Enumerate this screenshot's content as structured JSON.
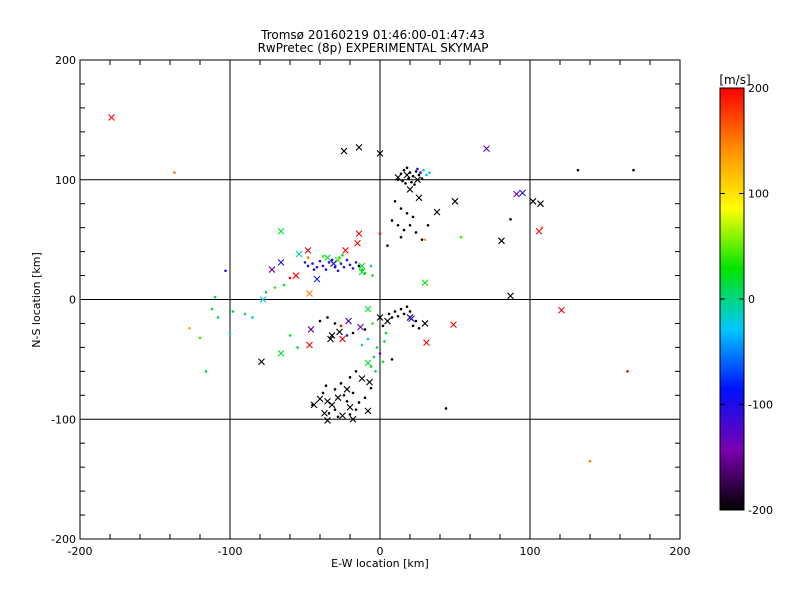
{
  "chart_data": {
    "type": "scatter",
    "title": "Tromsø 20160219 01:46:00-01:47:43",
    "subtitle": "RwPretec (8p) EXPERIMENTAL SKYMAP",
    "xlabel": "E-W location [km]",
    "ylabel": "N-S location [km]",
    "xlim": [
      -200,
      200
    ],
    "ylim": [
      -200,
      200
    ],
    "xticks": [
      "-200",
      "-100",
      "0",
      "100",
      "200"
    ],
    "yticks": [
      "-200",
      "-100",
      "0",
      "100",
      "200"
    ],
    "grid": true,
    "colorbar": {
      "label": "[m/s]",
      "range": [
        -200,
        200
      ],
      "ticks": [
        "-200",
        "-100",
        "0",
        "100",
        "200"
      ],
      "colormap": [
        "#000000",
        "#7a00b0",
        "#0010ff",
        "#00c8ff",
        "#00e400",
        "#ffff00",
        "#ff8c00",
        "#ff0000"
      ]
    },
    "cross_points": [
      {
        "x": -179,
        "y": 152,
        "v": 200
      },
      {
        "x": -24,
        "y": 124,
        "v": -200
      },
      {
        "x": -14,
        "y": 127,
        "v": -200
      },
      {
        "x": 0,
        "y": 122,
        "v": -200
      },
      {
        "x": 71,
        "y": 126,
        "v": -130
      },
      {
        "x": 18,
        "y": 104,
        "v": -200
      },
      {
        "x": 25,
        "y": 100,
        "v": -200
      },
      {
        "x": 12,
        "y": 102,
        "v": -200
      },
      {
        "x": 20,
        "y": 92,
        "v": -200
      },
      {
        "x": 26,
        "y": 85,
        "v": -200
      },
      {
        "x": 50,
        "y": 82,
        "v": -200
      },
      {
        "x": 38,
        "y": 73,
        "v": -200
      },
      {
        "x": 91,
        "y": 88,
        "v": -130
      },
      {
        "x": 95,
        "y": 89,
        "v": -100
      },
      {
        "x": 102,
        "y": 82,
        "v": -200
      },
      {
        "x": 107,
        "y": 80,
        "v": -200
      },
      {
        "x": 81,
        "y": 49,
        "v": -200
      },
      {
        "x": 106,
        "y": 57,
        "v": 200
      },
      {
        "x": 87,
        "y": 3,
        "v": -200
      },
      {
        "x": 121,
        "y": -9,
        "v": 200
      },
      {
        "x": -66,
        "y": 57,
        "v": 20
      },
      {
        "x": -14,
        "y": 55,
        "v": 200
      },
      {
        "x": -15,
        "y": 47,
        "v": 200
      },
      {
        "x": -23,
        "y": 41,
        "v": 200
      },
      {
        "x": -48,
        "y": 41,
        "v": 200
      },
      {
        "x": -54,
        "y": 38,
        "v": -10
      },
      {
        "x": -56,
        "y": 20,
        "v": 200
      },
      {
        "x": -35,
        "y": 35,
        "v": 20
      },
      {
        "x": -28,
        "y": 33,
        "v": 40
      },
      {
        "x": -31,
        "y": 30,
        "v": -100
      },
      {
        "x": -12,
        "y": 23,
        "v": 20
      },
      {
        "x": -12,
        "y": 28,
        "v": 20
      },
      {
        "x": -72,
        "y": 25,
        "v": -150
      },
      {
        "x": -66,
        "y": 31,
        "v": -100
      },
      {
        "x": -42,
        "y": 17,
        "v": -80
      },
      {
        "x": -47,
        "y": 5,
        "v": 150
      },
      {
        "x": -78,
        "y": 0,
        "v": -20
      },
      {
        "x": 30,
        "y": 14,
        "v": 30
      },
      {
        "x": -8,
        "y": -8,
        "v": 20
      },
      {
        "x": 0,
        "y": -15,
        "v": -200
      },
      {
        "x": 5,
        "y": -18,
        "v": -200
      },
      {
        "x": 20,
        "y": -15,
        "v": -200
      },
      {
        "x": 21,
        "y": -16,
        "v": -100
      },
      {
        "x": 30,
        "y": -20,
        "v": -200
      },
      {
        "x": 49,
        "y": -21,
        "v": 200
      },
      {
        "x": 31,
        "y": -36,
        "v": 200
      },
      {
        "x": -21,
        "y": -18,
        "v": -120
      },
      {
        "x": -13,
        "y": -23,
        "v": -130
      },
      {
        "x": -46,
        "y": -25,
        "v": -150
      },
      {
        "x": -27,
        "y": -27,
        "v": -200
      },
      {
        "x": -32,
        "y": -30,
        "v": -200
      },
      {
        "x": -25,
        "y": -33,
        "v": 200
      },
      {
        "x": -33,
        "y": -33,
        "v": -200
      },
      {
        "x": -47,
        "y": -38,
        "v": 200
      },
      {
        "x": -66,
        "y": -45,
        "v": 20
      },
      {
        "x": -79,
        "y": -52,
        "v": -200
      },
      {
        "x": -8,
        "y": -53,
        "v": 20
      },
      {
        "x": -12,
        "y": -66,
        "v": -200
      },
      {
        "x": -7,
        "y": -69,
        "v": -200
      },
      {
        "x": -22,
        "y": -75,
        "v": -200
      },
      {
        "x": -28,
        "y": -82,
        "v": -200
      },
      {
        "x": -32,
        "y": -88,
        "v": -200
      },
      {
        "x": -35,
        "y": -85,
        "v": -200
      },
      {
        "x": -37,
        "y": -95,
        "v": -200
      },
      {
        "x": -44,
        "y": -88,
        "v": -200
      },
      {
        "x": -20,
        "y": -90,
        "v": -200
      },
      {
        "x": -8,
        "y": -93,
        "v": -200
      },
      {
        "x": -35,
        "y": -101,
        "v": -200
      },
      {
        "x": -18,
        "y": -100,
        "v": -200
      },
      {
        "x": -25,
        "y": -97,
        "v": -200
      },
      {
        "x": -40,
        "y": -83,
        "v": -200
      }
    ],
    "dot_points": [
      {
        "x": -137,
        "y": 106,
        "v": 150
      },
      {
        "x": 132,
        "y": 108,
        "v": -200
      },
      {
        "x": 169,
        "y": 108,
        "v": -200
      },
      {
        "x": 14,
        "y": 105,
        "v": -200
      },
      {
        "x": 16,
        "y": 108,
        "v": -200
      },
      {
        "x": 18,
        "y": 110,
        "v": -200
      },
      {
        "x": 20,
        "y": 106,
        "v": -200
      },
      {
        "x": 22,
        "y": 103,
        "v": -200
      },
      {
        "x": 24,
        "y": 107,
        "v": -200
      },
      {
        "x": 26,
        "y": 104,
        "v": -200
      },
      {
        "x": 28,
        "y": 101,
        "v": -200
      },
      {
        "x": 15,
        "y": 99,
        "v": -200
      },
      {
        "x": 17,
        "y": 97,
        "v": -200
      },
      {
        "x": 19,
        "y": 101,
        "v": -200
      },
      {
        "x": 21,
        "y": 98,
        "v": -200
      },
      {
        "x": 23,
        "y": 96,
        "v": -200
      },
      {
        "x": 27,
        "y": 106,
        "v": -100
      },
      {
        "x": 29,
        "y": 108,
        "v": -30
      },
      {
        "x": 31,
        "y": 104,
        "v": -30
      },
      {
        "x": 33,
        "y": 106,
        "v": -20
      },
      {
        "x": 25,
        "y": 109,
        "v": -100
      },
      {
        "x": 12,
        "y": 100,
        "v": -200
      },
      {
        "x": 10,
        "y": 82,
        "v": -200
      },
      {
        "x": 14,
        "y": 76,
        "v": -200
      },
      {
        "x": 18,
        "y": 72,
        "v": -200
      },
      {
        "x": 22,
        "y": 69,
        "v": -200
      },
      {
        "x": 8,
        "y": 66,
        "v": -200
      },
      {
        "x": 12,
        "y": 62,
        "v": -200
      },
      {
        "x": 16,
        "y": 58,
        "v": -200
      },
      {
        "x": 20,
        "y": 62,
        "v": -200
      },
      {
        "x": 24,
        "y": 56,
        "v": -200
      },
      {
        "x": 28,
        "y": 50,
        "v": -200
      },
      {
        "x": 14,
        "y": 52,
        "v": -200
      },
      {
        "x": 5,
        "y": 45,
        "v": -200
      },
      {
        "x": 32,
        "y": 62,
        "v": -200
      },
      {
        "x": 0,
        "y": 55,
        "v": 200
      },
      {
        "x": 30,
        "y": 50,
        "v": 130
      },
      {
        "x": 54,
        "y": 52,
        "v": 40
      },
      {
        "x": 87,
        "y": 67,
        "v": -200
      },
      {
        "x": 108,
        "y": 60,
        "v": 150
      },
      {
        "x": -45,
        "y": 30,
        "v": -100
      },
      {
        "x": -42,
        "y": 27,
        "v": -100
      },
      {
        "x": -40,
        "y": 32,
        "v": -100
      },
      {
        "x": -38,
        "y": 28,
        "v": -100
      },
      {
        "x": -36,
        "y": 25,
        "v": -100
      },
      {
        "x": -34,
        "y": 31,
        "v": -100
      },
      {
        "x": -30,
        "y": 27,
        "v": -100
      },
      {
        "x": -28,
        "y": 24,
        "v": -100
      },
      {
        "x": -26,
        "y": 30,
        "v": -100
      },
      {
        "x": -24,
        "y": 27,
        "v": -100
      },
      {
        "x": -22,
        "y": 33,
        "v": -100
      },
      {
        "x": -20,
        "y": 29,
        "v": -100
      },
      {
        "x": -18,
        "y": 26,
        "v": -100
      },
      {
        "x": -16,
        "y": 31,
        "v": -100
      },
      {
        "x": -14,
        "y": 28,
        "v": -200
      },
      {
        "x": -48,
        "y": 28,
        "v": -100
      },
      {
        "x": -50,
        "y": 31,
        "v": -100
      },
      {
        "x": -44,
        "y": 25,
        "v": -100
      },
      {
        "x": -32,
        "y": 33,
        "v": -100
      },
      {
        "x": -27,
        "y": 35,
        "v": 20
      },
      {
        "x": -25,
        "y": 37,
        "v": 20
      },
      {
        "x": -38,
        "y": 36,
        "v": 40
      },
      {
        "x": -12,
        "y": 25,
        "v": 30
      },
      {
        "x": -10,
        "y": 22,
        "v": 30
      },
      {
        "x": -6,
        "y": 28,
        "v": -20
      },
      {
        "x": -5,
        "y": 20,
        "v": 20
      },
      {
        "x": -48,
        "y": 35,
        "v": 150
      },
      {
        "x": -60,
        "y": 18,
        "v": 200
      },
      {
        "x": -70,
        "y": 10,
        "v": 40
      },
      {
        "x": -64,
        "y": 12,
        "v": 20
      },
      {
        "x": -76,
        "y": 6,
        "v": 20
      },
      {
        "x": -103,
        "y": 24,
        "v": -100
      },
      {
        "x": -110,
        "y": 2,
        "v": 20
      },
      {
        "x": -112,
        "y": -8,
        "v": 20
      },
      {
        "x": -108,
        "y": -15,
        "v": 10
      },
      {
        "x": -98,
        "y": -10,
        "v": 20
      },
      {
        "x": -90,
        "y": -12,
        "v": 10
      },
      {
        "x": -85,
        "y": -15,
        "v": -20
      },
      {
        "x": -120,
        "y": -32,
        "v": 40
      },
      {
        "x": -127,
        "y": -24,
        "v": 130
      },
      {
        "x": -116,
        "y": -60,
        "v": 20
      },
      {
        "x": -100,
        "y": -28,
        "v": -20
      },
      {
        "x": -60,
        "y": -30,
        "v": 20
      },
      {
        "x": -55,
        "y": -40,
        "v": 20
      },
      {
        "x": -40,
        "y": -18,
        "v": -200
      },
      {
        "x": -35,
        "y": -15,
        "v": -200
      },
      {
        "x": -30,
        "y": -20,
        "v": -200
      },
      {
        "x": -26,
        "y": -22,
        "v": 200
      },
      {
        "x": -22,
        "y": -30,
        "v": -100
      },
      {
        "x": -18,
        "y": -28,
        "v": -200
      },
      {
        "x": -10,
        "y": -25,
        "v": -200
      },
      {
        "x": -5,
        "y": -20,
        "v": 40
      },
      {
        "x": 2,
        "y": -22,
        "v": -200
      },
      {
        "x": 6,
        "y": -12,
        "v": -200
      },
      {
        "x": 8,
        "y": -15,
        "v": -200
      },
      {
        "x": 10,
        "y": -10,
        "v": -200
      },
      {
        "x": 12,
        "y": -14,
        "v": -200
      },
      {
        "x": 14,
        "y": -8,
        "v": -200
      },
      {
        "x": 16,
        "y": -12,
        "v": -200
      },
      {
        "x": 18,
        "y": -6,
        "v": -200
      },
      {
        "x": 20,
        "y": -10,
        "v": -200
      },
      {
        "x": 22,
        "y": -22,
        "v": -200
      },
      {
        "x": 24,
        "y": -18,
        "v": -200
      },
      {
        "x": 26,
        "y": -24,
        "v": -200
      },
      {
        "x": 4,
        "y": -28,
        "v": 20
      },
      {
        "x": 3,
        "y": -35,
        "v": 20
      },
      {
        "x": -2,
        "y": -40,
        "v": 20
      },
      {
        "x": -4,
        "y": -48,
        "v": 10
      },
      {
        "x": 2,
        "y": -52,
        "v": 20
      },
      {
        "x": -6,
        "y": -56,
        "v": 20
      },
      {
        "x": -3,
        "y": -60,
        "v": 10
      },
      {
        "x": -12,
        "y": -38,
        "v": -20
      },
      {
        "x": -8,
        "y": -33,
        "v": -20
      },
      {
        "x": 0,
        "y": -45,
        "v": -150
      },
      {
        "x": 8,
        "y": -50,
        "v": -200
      },
      {
        "x": -45,
        "y": -88,
        "v": -200
      },
      {
        "x": -38,
        "y": -78,
        "v": -200
      },
      {
        "x": -36,
        "y": -72,
        "v": -200
      },
      {
        "x": -30,
        "y": -75,
        "v": -200
      },
      {
        "x": -26,
        "y": -70,
        "v": -200
      },
      {
        "x": -24,
        "y": -80,
        "v": -200
      },
      {
        "x": -22,
        "y": -85,
        "v": -200
      },
      {
        "x": -30,
        "y": -92,
        "v": -200
      },
      {
        "x": -34,
        "y": -95,
        "v": -200
      },
      {
        "x": -28,
        "y": -98,
        "v": -200
      },
      {
        "x": -20,
        "y": -96,
        "v": -200
      },
      {
        "x": -16,
        "y": -92,
        "v": -200
      },
      {
        "x": -14,
        "y": -86,
        "v": -200
      },
      {
        "x": -18,
        "y": -78,
        "v": -200
      },
      {
        "x": -10,
        "y": -82,
        "v": -200
      },
      {
        "x": -6,
        "y": -74,
        "v": -200
      },
      {
        "x": -20,
        "y": -65,
        "v": -200
      },
      {
        "x": -16,
        "y": -60,
        "v": -200
      },
      {
        "x": 44,
        "y": -91,
        "v": -200
      },
      {
        "x": 140,
        "y": -135,
        "v": 150
      },
      {
        "x": 165,
        "y": -60,
        "v": 200
      }
    ]
  }
}
